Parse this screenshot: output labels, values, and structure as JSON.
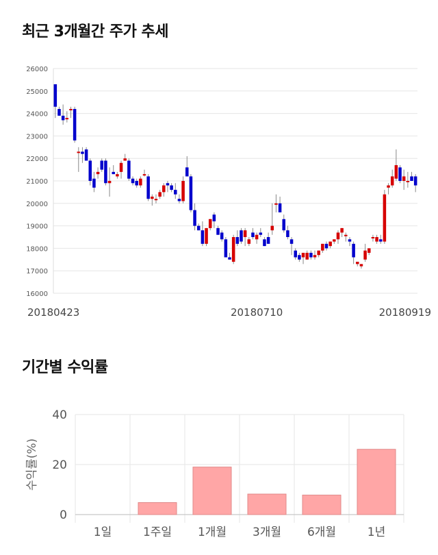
{
  "sections": {
    "price_title": "최근 3개월간 주가 추세",
    "return_title": "기간별 수익률"
  },
  "colors": {
    "up": "#d60000",
    "down": "#0000cc",
    "wick": "#888888",
    "grid": "#e6e6e6",
    "bar": "#ffa6a6",
    "bar_edge": "#e08a8a"
  },
  "chart_data": [
    {
      "type": "candlestick",
      "ylim": [
        16000,
        26000
      ],
      "yticks": [
        16000,
        17000,
        18000,
        19000,
        20000,
        21000,
        22000,
        23000,
        24000,
        25000,
        26000
      ],
      "xlabels": [
        {
          "index": 0,
          "label": "20180423"
        },
        {
          "index": 52,
          "label": "20180710"
        },
        {
          "index": 93,
          "label": "20180919"
        }
      ],
      "candles": [
        [
          25300,
          25300,
          23800,
          24300
        ],
        [
          24200,
          24300,
          23900,
          23900
        ],
        [
          23900,
          24400,
          23500,
          23700
        ],
        [
          23800,
          24100,
          23600,
          23800
        ],
        [
          24200,
          24300,
          23800,
          24200
        ],
        [
          24200,
          24300,
          22700,
          22800
        ],
        [
          22300,
          22500,
          21400,
          22300
        ],
        [
          22300,
          22500,
          21800,
          22200
        ],
        [
          22400,
          22500,
          21900,
          21900
        ],
        [
          21900,
          22000,
          20800,
          21000
        ],
        [
          21100,
          21400,
          20500,
          20700
        ],
        [
          21300,
          21600,
          21100,
          21400
        ],
        [
          21900,
          22000,
          21400,
          21500
        ],
        [
          21900,
          22000,
          20800,
          20900
        ],
        [
          20900,
          21600,
          20300,
          21000
        ],
        [
          21400,
          21700,
          21300,
          21300
        ],
        [
          21200,
          21400,
          21100,
          21300
        ],
        [
          21400,
          21900,
          21100,
          21800
        ],
        [
          21900,
          22200,
          21900,
          22000
        ],
        [
          21900,
          22000,
          21000,
          21100
        ],
        [
          21100,
          21200,
          20800,
          20900
        ],
        [
          21000,
          21100,
          20700,
          20800
        ],
        [
          20800,
          21200,
          20700,
          21100
        ],
        [
          21300,
          21500,
          21200,
          21300
        ],
        [
          21200,
          21300,
          20100,
          20200
        ],
        [
          20200,
          20400,
          19900,
          20300
        ],
        [
          20200,
          20400,
          20000,
          20200
        ],
        [
          20300,
          20600,
          20200,
          20500
        ],
        [
          20500,
          20900,
          20300,
          20800
        ],
        [
          20900,
          21000,
          20500,
          20800
        ],
        [
          20800,
          20900,
          20500,
          20600
        ],
        [
          20600,
          20900,
          20200,
          20400
        ],
        [
          20200,
          20400,
          20000,
          20100
        ],
        [
          20100,
          21200,
          20000,
          21000
        ],
        [
          21600,
          22100,
          21200,
          21200
        ],
        [
          21200,
          21300,
          19600,
          19700
        ],
        [
          19700,
          20000,
          18800,
          19000
        ],
        [
          19000,
          19100,
          18800,
          18800
        ],
        [
          18800,
          19200,
          18100,
          18200
        ],
        [
          18200,
          18900,
          18100,
          18900
        ],
        [
          18900,
          19300,
          18800,
          19300
        ],
        [
          19500,
          19600,
          18900,
          19200
        ],
        [
          18900,
          19000,
          18600,
          18600
        ],
        [
          18700,
          18800,
          18300,
          18400
        ],
        [
          18400,
          18500,
          17600,
          17600
        ],
        [
          17600,
          17800,
          17500,
          17500
        ],
        [
          17400,
          18600,
          17300,
          18500
        ],
        [
          18500,
          18800,
          18100,
          18200
        ],
        [
          18800,
          18900,
          18200,
          18300
        ],
        [
          18500,
          18900,
          18100,
          18800
        ],
        [
          18200,
          18500,
          18100,
          18400
        ],
        [
          18700,
          18900,
          18400,
          18500
        ],
        [
          18400,
          18700,
          18200,
          18600
        ],
        [
          18700,
          18900,
          18500,
          18600
        ],
        [
          18400,
          18500,
          18100,
          18100
        ],
        [
          18500,
          18700,
          18200,
          18200
        ],
        [
          18800,
          20000,
          18600,
          19000
        ],
        [
          20000,
          20400,
          19600,
          20000
        ],
        [
          20000,
          20300,
          19600,
          19600
        ],
        [
          19300,
          19500,
          18700,
          18800
        ],
        [
          18800,
          19000,
          18400,
          18500
        ],
        [
          18400,
          18500,
          17700,
          18200
        ],
        [
          17900,
          18000,
          17500,
          17600
        ],
        [
          17700,
          17800,
          17400,
          17500
        ],
        [
          17600,
          17800,
          17300,
          17800
        ],
        [
          17500,
          17900,
          17500,
          17800
        ],
        [
          17800,
          17900,
          17500,
          17600
        ],
        [
          17600,
          17900,
          17500,
          17700
        ],
        [
          17700,
          17900,
          17600,
          17900
        ],
        [
          17900,
          18200,
          17800,
          18200
        ],
        [
          18200,
          18300,
          17900,
          18000
        ],
        [
          18100,
          18300,
          18000,
          18300
        ],
        [
          18300,
          18400,
          18200,
          18400
        ],
        [
          18400,
          18800,
          18200,
          18700
        ],
        [
          18700,
          18900,
          18500,
          18900
        ],
        [
          18600,
          18700,
          18300,
          18600
        ],
        [
          18400,
          18500,
          18100,
          18300
        ],
        [
          18200,
          18300,
          17300,
          17600
        ],
        [
          17300,
          17400,
          17200,
          17400
        ],
        [
          17200,
          17300,
          17100,
          17300
        ],
        [
          17500,
          18200,
          17400,
          17900
        ],
        [
          17800,
          18000,
          17700,
          18000
        ],
        [
          18500,
          18600,
          18300,
          18500
        ],
        [
          18300,
          18600,
          18200,
          18500
        ],
        [
          18400,
          18600,
          18200,
          18300
        ],
        [
          18300,
          20600,
          18200,
          20400
        ],
        [
          20700,
          20900,
          20400,
          20800
        ],
        [
          20800,
          21500,
          20700,
          21200
        ],
        [
          21100,
          22400,
          21000,
          21700
        ],
        [
          21600,
          21700,
          20900,
          21000
        ],
        [
          21000,
          21500,
          20600,
          21200
        ],
        [
          21000,
          21400,
          20700,
          21000
        ],
        [
          21200,
          21400,
          21000,
          21000
        ],
        [
          21200,
          21300,
          20500,
          20800
        ]
      ]
    },
    {
      "type": "bar",
      "ylabel": "수익률(%)",
      "ylim": [
        0,
        40
      ],
      "yticks": [
        0,
        20,
        40
      ],
      "categories": [
        "1일",
        "1주일",
        "1개월",
        "3개월",
        "6개월",
        "1년"
      ],
      "values": [
        0,
        4.8,
        19.0,
        8.2,
        7.8,
        26.1
      ]
    }
  ]
}
